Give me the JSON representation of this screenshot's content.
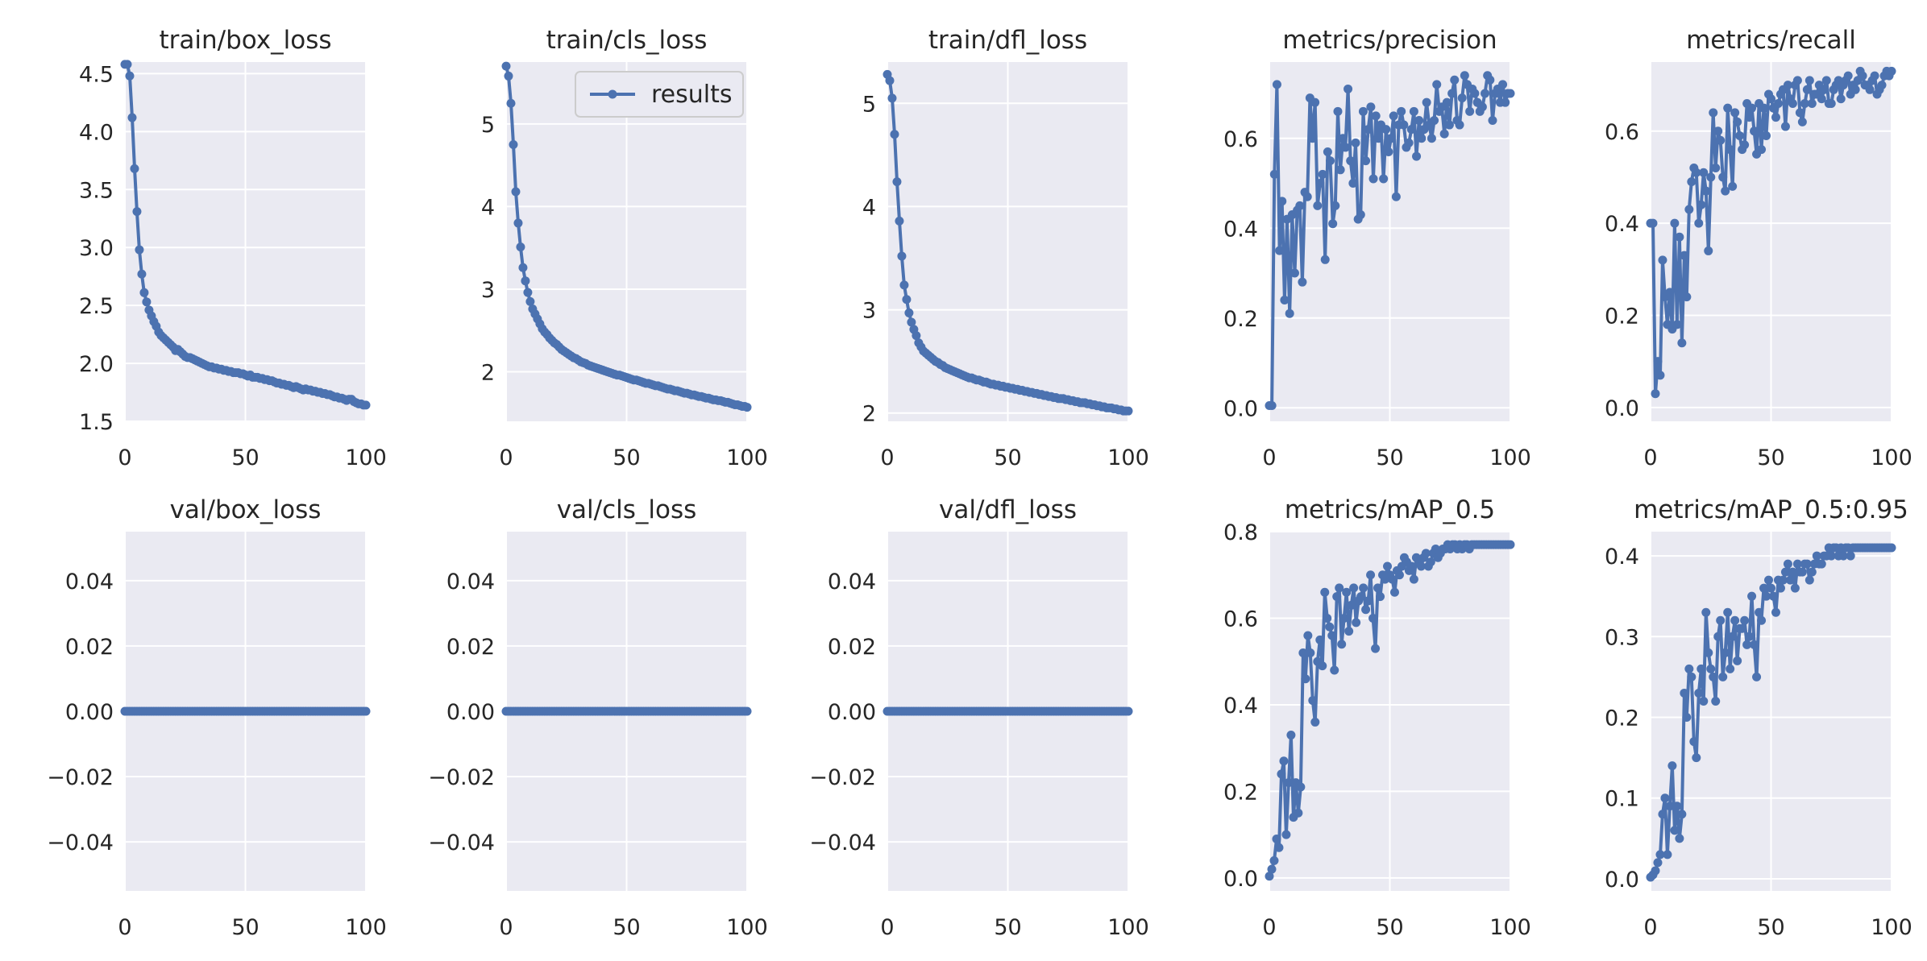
{
  "figure": {
    "background": "#ffffff",
    "axes_bg": "#eaeaf2",
    "grid": "#ffffff",
    "line_color": "#4c72b0",
    "text_color": "#262626"
  },
  "chart_data": [
    {
      "type": "line",
      "title": "train/box_loss",
      "xlim": [
        0,
        100
      ],
      "ylim": [
        1.5,
        4.6
      ],
      "xticks": [
        "0",
        "50",
        "100"
      ],
      "yticks": [
        "1.5",
        "2.0",
        "2.5",
        "3.0",
        "3.5",
        "4.0",
        "4.5"
      ],
      "ytick_values": [
        1.5,
        2.0,
        2.5,
        3.0,
        3.5,
        4.0,
        4.5
      ],
      "x_start": 0,
      "series": [
        {
          "name": "results",
          "values": [
            4.58,
            4.58,
            4.48,
            4.12,
            3.68,
            3.31,
            2.98,
            2.77,
            2.61,
            2.53,
            2.46,
            2.41,
            2.36,
            2.32,
            2.27,
            2.24,
            2.22,
            2.2,
            2.18,
            2.16,
            2.14,
            2.11,
            2.12,
            2.1,
            2.08,
            2.06,
            2.05,
            2.05,
            2.04,
            2.03,
            2.02,
            2.01,
            2.0,
            1.99,
            1.98,
            1.97,
            1.97,
            1.96,
            1.96,
            1.95,
            1.95,
            1.94,
            1.94,
            1.93,
            1.93,
            1.92,
            1.92,
            1.92,
            1.91,
            1.91,
            1.9,
            1.89,
            1.9,
            1.88,
            1.88,
            1.88,
            1.87,
            1.87,
            1.86,
            1.86,
            1.85,
            1.85,
            1.84,
            1.83,
            1.83,
            1.82,
            1.82,
            1.81,
            1.81,
            1.8,
            1.79,
            1.8,
            1.79,
            1.78,
            1.77,
            1.78,
            1.77,
            1.77,
            1.76,
            1.76,
            1.75,
            1.75,
            1.74,
            1.74,
            1.73,
            1.73,
            1.72,
            1.71,
            1.71,
            1.7,
            1.7,
            1.69,
            1.68,
            1.69,
            1.69,
            1.67,
            1.66,
            1.65,
            1.65,
            1.64,
            1.64
          ]
        }
      ]
    },
    {
      "type": "line",
      "title": "train/cls_loss",
      "xlim": [
        0,
        100
      ],
      "ylim": [
        1.4,
        5.75
      ],
      "xticks": [
        "0",
        "50",
        "100"
      ],
      "yticks": [
        "2",
        "3",
        "4",
        "5"
      ],
      "ytick_values": [
        2,
        3,
        4,
        5
      ],
      "x_start": 0,
      "legend": {
        "label": "results",
        "position": "top-right"
      },
      "series": [
        {
          "name": "results",
          "values": [
            5.7,
            5.58,
            5.25,
            4.75,
            4.18,
            3.8,
            3.51,
            3.26,
            3.1,
            2.96,
            2.85,
            2.76,
            2.7,
            2.64,
            2.58,
            2.52,
            2.48,
            2.45,
            2.41,
            2.38,
            2.35,
            2.33,
            2.3,
            2.27,
            2.25,
            2.23,
            2.21,
            2.19,
            2.17,
            2.16,
            2.14,
            2.12,
            2.11,
            2.1,
            2.08,
            2.07,
            2.06,
            2.05,
            2.04,
            2.03,
            2.02,
            2.01,
            2.0,
            1.99,
            1.98,
            1.97,
            1.96,
            1.96,
            1.95,
            1.94,
            1.93,
            1.92,
            1.91,
            1.9,
            1.9,
            1.89,
            1.88,
            1.87,
            1.86,
            1.86,
            1.85,
            1.84,
            1.83,
            1.83,
            1.82,
            1.81,
            1.8,
            1.79,
            1.79,
            1.78,
            1.77,
            1.77,
            1.76,
            1.75,
            1.74,
            1.74,
            1.73,
            1.72,
            1.72,
            1.71,
            1.7,
            1.7,
            1.69,
            1.68,
            1.68,
            1.67,
            1.66,
            1.66,
            1.65,
            1.65,
            1.64,
            1.63,
            1.63,
            1.62,
            1.61,
            1.6,
            1.6,
            1.59,
            1.58,
            1.58,
            1.57
          ]
        }
      ]
    },
    {
      "type": "line",
      "title": "train/dfl_loss",
      "xlim": [
        0,
        100
      ],
      "ylim": [
        1.92,
        5.4
      ],
      "xticks": [
        "0",
        "50",
        "100"
      ],
      "yticks": [
        "2",
        "3",
        "4",
        "5"
      ],
      "ytick_values": [
        2,
        3,
        4,
        5
      ],
      "x_start": 0,
      "series": [
        {
          "name": "results",
          "values": [
            5.28,
            5.22,
            5.05,
            4.7,
            4.24,
            3.86,
            3.52,
            3.24,
            3.1,
            2.97,
            2.88,
            2.81,
            2.75,
            2.68,
            2.64,
            2.6,
            2.58,
            2.56,
            2.54,
            2.52,
            2.5,
            2.49,
            2.47,
            2.46,
            2.44,
            2.43,
            2.42,
            2.41,
            2.4,
            2.39,
            2.38,
            2.37,
            2.36,
            2.35,
            2.34,
            2.34,
            2.33,
            2.32,
            2.32,
            2.31,
            2.3,
            2.3,
            2.29,
            2.28,
            2.28,
            2.27,
            2.27,
            2.26,
            2.26,
            2.25,
            2.25,
            2.24,
            2.24,
            2.23,
            2.23,
            2.22,
            2.22,
            2.21,
            2.21,
            2.2,
            2.2,
            2.19,
            2.19,
            2.18,
            2.18,
            2.17,
            2.17,
            2.16,
            2.16,
            2.15,
            2.15,
            2.14,
            2.14,
            2.14,
            2.13,
            2.13,
            2.12,
            2.12,
            2.11,
            2.11,
            2.1,
            2.1,
            2.1,
            2.09,
            2.09,
            2.08,
            2.08,
            2.07,
            2.07,
            2.06,
            2.06,
            2.05,
            2.05,
            2.05,
            2.04,
            2.04,
            2.03,
            2.03,
            2.02,
            2.02,
            2.02
          ]
        }
      ]
    },
    {
      "type": "line",
      "title": "metrics/precision",
      "xlim": [
        0,
        100
      ],
      "ylim": [
        -0.03,
        0.77
      ],
      "xticks": [
        "0",
        "50",
        "100"
      ],
      "yticks": [
        "0.0",
        "0.2",
        "0.4",
        "0.6"
      ],
      "ytick_values": [
        0,
        0.2,
        0.4,
        0.6
      ],
      "x_start": 0,
      "series": [
        {
          "name": "results",
          "values": [
            0.005,
            0.005,
            0.52,
            0.72,
            0.35,
            0.46,
            0.24,
            0.42,
            0.21,
            0.43,
            0.3,
            0.44,
            0.45,
            0.28,
            0.48,
            0.47,
            0.69,
            0.6,
            0.68,
            0.45,
            0.5,
            0.52,
            0.33,
            0.57,
            0.55,
            0.41,
            0.45,
            0.66,
            0.53,
            0.6,
            0.58,
            0.71,
            0.55,
            0.5,
            0.59,
            0.42,
            0.43,
            0.66,
            0.55,
            0.62,
            0.67,
            0.51,
            0.65,
            0.6,
            0.63,
            0.51,
            0.62,
            0.57,
            0.6,
            0.65,
            0.47,
            0.63,
            0.66,
            0.63,
            0.58,
            0.59,
            0.62,
            0.66,
            0.56,
            0.64,
            0.6,
            0.62,
            0.68,
            0.63,
            0.6,
            0.64,
            0.72,
            0.66,
            0.67,
            0.61,
            0.68,
            0.63,
            0.7,
            0.73,
            0.64,
            0.63,
            0.69,
            0.74,
            0.72,
            0.66,
            0.71,
            0.7,
            0.68,
            0.66,
            0.67,
            0.7,
            0.74,
            0.73,
            0.64,
            0.7,
            0.71,
            0.68,
            0.72,
            0.68,
            0.7,
            0.7
          ]
        }
      ]
    },
    {
      "type": "line",
      "title": "metrics/recall",
      "xlim": [
        0,
        100
      ],
      "ylim": [
        -0.03,
        0.75
      ],
      "xticks": [
        "0",
        "50",
        "100"
      ],
      "yticks": [
        "0.0",
        "0.2",
        "0.4",
        "0.6"
      ],
      "ytick_values": [
        0,
        0.2,
        0.4,
        0.6
      ],
      "x_start": 0,
      "series": [
        {
          "name": "results",
          "values": [
            0.4,
            0.4,
            0.03,
            0.1,
            0.07,
            0.32,
            0.24,
            0.18,
            0.25,
            0.17,
            0.4,
            0.18,
            0.37,
            0.14,
            0.33,
            0.24,
            0.43,
            0.49,
            0.52,
            0.51,
            0.4,
            0.44,
            0.51,
            0.47,
            0.34,
            0.5,
            0.64,
            0.52,
            0.6,
            0.58,
            0.5,
            0.47,
            0.65,
            0.56,
            0.48,
            0.64,
            0.62,
            0.59,
            0.56,
            0.57,
            0.66,
            0.63,
            0.65,
            0.6,
            0.55,
            0.66,
            0.56,
            0.65,
            0.59,
            0.68,
            0.67,
            0.65,
            0.63,
            0.66,
            0.68,
            0.69,
            0.61,
            0.7,
            0.67,
            0.66,
            0.7,
            0.71,
            0.64,
            0.62,
            0.66,
            0.69,
            0.71,
            0.66,
            0.68,
            0.68,
            0.7,
            0.67,
            0.69,
            0.71,
            0.66,
            0.66,
            0.69,
            0.7,
            0.71,
            0.67,
            0.7,
            0.71,
            0.72,
            0.68,
            0.7,
            0.69,
            0.71,
            0.73,
            0.72,
            0.7,
            0.7,
            0.69,
            0.71,
            0.72,
            0.68,
            0.69,
            0.7,
            0.72,
            0.73,
            0.72,
            0.73
          ]
        }
      ]
    },
    {
      "type": "line",
      "title": "val/box_loss",
      "xlim": [
        0,
        100
      ],
      "ylim": [
        -0.055,
        0.055
      ],
      "xticks": [
        "0",
        "50",
        "100"
      ],
      "yticks": [
        "−0.04",
        "−0.02",
        "0.00",
        "0.02",
        "0.04"
      ],
      "ytick_values": [
        -0.04,
        -0.02,
        0,
        0.02,
        0.04
      ],
      "x_start": 0,
      "series": [
        {
          "name": "results",
          "values": "zeros-101"
        }
      ]
    },
    {
      "type": "line",
      "title": "val/cls_loss",
      "xlim": [
        0,
        100
      ],
      "ylim": [
        -0.055,
        0.055
      ],
      "xticks": [
        "0",
        "50",
        "100"
      ],
      "yticks": [
        "−0.04",
        "−0.02",
        "0.00",
        "0.02",
        "0.04"
      ],
      "ytick_values": [
        -0.04,
        -0.02,
        0,
        0.02,
        0.04
      ],
      "x_start": 0,
      "series": [
        {
          "name": "results",
          "values": "zeros-101"
        }
      ]
    },
    {
      "type": "line",
      "title": "val/dfl_loss",
      "xlim": [
        0,
        100
      ],
      "ylim": [
        -0.055,
        0.055
      ],
      "xticks": [
        "0",
        "50",
        "100"
      ],
      "yticks": [
        "−0.04",
        "−0.02",
        "0.00",
        "0.02",
        "0.04"
      ],
      "ytick_values": [
        -0.04,
        -0.02,
        0,
        0.02,
        0.04
      ],
      "x_start": 0,
      "series": [
        {
          "name": "results",
          "values": "zeros-101"
        }
      ]
    },
    {
      "type": "line",
      "title": "metrics/mAP_0.5",
      "xlim": [
        0,
        100
      ],
      "ylim": [
        -0.03,
        0.8
      ],
      "xticks": [
        "0",
        "50",
        "100"
      ],
      "yticks": [
        "0.0",
        "0.2",
        "0.4",
        "0.6",
        "0.8"
      ],
      "ytick_values": [
        0,
        0.2,
        0.4,
        0.6,
        0.8
      ],
      "x_start": 0,
      "series": [
        {
          "name": "results",
          "values": [
            0.004,
            0.02,
            0.04,
            0.09,
            0.07,
            0.24,
            0.27,
            0.1,
            0.22,
            0.33,
            0.14,
            0.22,
            0.15,
            0.21,
            0.52,
            0.46,
            0.56,
            0.52,
            0.41,
            0.36,
            0.5,
            0.55,
            0.49,
            0.66,
            0.6,
            0.58,
            0.56,
            0.48,
            0.65,
            0.67,
            0.54,
            0.6,
            0.66,
            0.57,
            0.63,
            0.67,
            0.59,
            0.64,
            0.65,
            0.67,
            0.62,
            0.64,
            0.7,
            0.6,
            0.53,
            0.67,
            0.65,
            0.7,
            0.69,
            0.72,
            0.7,
            0.69,
            0.66,
            0.71,
            0.7,
            0.72,
            0.74,
            0.73,
            0.71,
            0.72,
            0.69,
            0.74,
            0.73,
            0.72,
            0.74,
            0.75,
            0.72,
            0.73,
            0.75,
            0.76,
            0.74,
            0.75,
            0.76,
            0.76,
            0.77,
            0.76,
            0.77,
            0.77,
            0.76,
            0.77,
            0.76,
            0.77,
            0.77,
            0.76,
            0.77,
            0.77,
            0.77,
            0.77,
            0.77,
            0.77,
            0.77,
            0.77,
            0.77,
            0.77,
            0.77,
            0.77,
            0.77,
            0.77,
            0.77,
            0.77,
            0.77
          ]
        }
      ]
    },
    {
      "type": "line",
      "title": "metrics/mAP_0.5:0.95",
      "xlim": [
        0,
        100
      ],
      "ylim": [
        -0.015,
        0.43
      ],
      "xticks": [
        "0",
        "50",
        "100"
      ],
      "yticks": [
        "0.0",
        "0.1",
        "0.2",
        "0.3",
        "0.4"
      ],
      "ytick_values": [
        0,
        0.1,
        0.2,
        0.3,
        0.4
      ],
      "x_start": 0,
      "series": [
        {
          "name": "results",
          "values": [
            0.002,
            0.005,
            0.01,
            0.02,
            0.03,
            0.08,
            0.1,
            0.03,
            0.09,
            0.14,
            0.06,
            0.09,
            0.05,
            0.08,
            0.23,
            0.2,
            0.26,
            0.25,
            0.17,
            0.15,
            0.23,
            0.26,
            0.22,
            0.33,
            0.28,
            0.26,
            0.25,
            0.22,
            0.3,
            0.32,
            0.25,
            0.28,
            0.33,
            0.26,
            0.3,
            0.32,
            0.27,
            0.31,
            0.31,
            0.32,
            0.29,
            0.3,
            0.35,
            0.29,
            0.25,
            0.33,
            0.32,
            0.36,
            0.35,
            0.37,
            0.36,
            0.35,
            0.33,
            0.37,
            0.36,
            0.37,
            0.38,
            0.39,
            0.37,
            0.38,
            0.36,
            0.39,
            0.38,
            0.38,
            0.39,
            0.39,
            0.37,
            0.38,
            0.39,
            0.4,
            0.39,
            0.39,
            0.4,
            0.4,
            0.41,
            0.4,
            0.41,
            0.41,
            0.4,
            0.41,
            0.4,
            0.41,
            0.41,
            0.4,
            0.41,
            0.41,
            0.41,
            0.41,
            0.41,
            0.41,
            0.41,
            0.41,
            0.41,
            0.41,
            0.41,
            0.41,
            0.41,
            0.41,
            0.41,
            0.41,
            0.41
          ]
        }
      ]
    }
  ]
}
